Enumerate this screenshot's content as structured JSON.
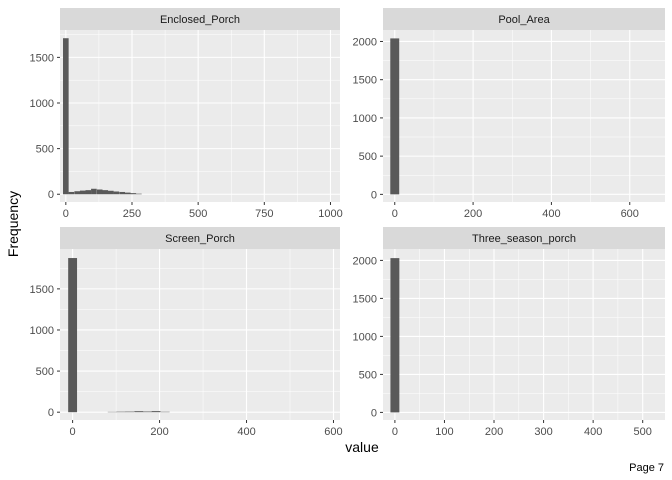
{
  "xlabel": "value",
  "ylabel": "Frequency",
  "page_label": "Page 7",
  "colors": {
    "panel_bg": "#ebebeb",
    "strip_bg": "#d9d9d9",
    "grid_major": "#ffffff",
    "bar_fill": "#595959",
    "tick_color": "#333333"
  },
  "chart_data": [
    {
      "type": "histogram",
      "title": "Enclosed_Porch",
      "xlim": [
        -22,
        1036
      ],
      "ylim": [
        -85,
        1800
      ],
      "x_ticks": [
        0,
        250,
        500,
        750,
        1000
      ],
      "y_ticks": [
        0,
        500,
        1000,
        1500
      ],
      "bin_width": 21.25,
      "bins": [
        {
          "x": 0,
          "count": 1710
        },
        {
          "x": 21,
          "count": 25
        },
        {
          "x": 43,
          "count": 33
        },
        {
          "x": 64,
          "count": 40
        },
        {
          "x": 85,
          "count": 45
        },
        {
          "x": 106,
          "count": 60
        },
        {
          "x": 128,
          "count": 52
        },
        {
          "x": 149,
          "count": 45
        },
        {
          "x": 170,
          "count": 38
        },
        {
          "x": 191,
          "count": 30
        },
        {
          "x": 213,
          "count": 25
        },
        {
          "x": 234,
          "count": 18
        },
        {
          "x": 255,
          "count": 12
        },
        {
          "x": 276,
          "count": 6
        }
      ]
    },
    {
      "type": "histogram",
      "title": "Pool_Area",
      "xlim": [
        -30,
        690
      ],
      "ylim": [
        -100,
        2150
      ],
      "x_ticks": [
        0,
        200,
        400,
        600
      ],
      "y_ticks": [
        0,
        500,
        1000,
        1500,
        2000
      ],
      "bin_width": 22.8,
      "bins": [
        {
          "x": 0,
          "count": 2040
        }
      ]
    },
    {
      "type": "histogram",
      "title": "Screen_Porch",
      "xlim": [
        -29,
        615
      ],
      "ylim": [
        -95,
        1985
      ],
      "x_ticks": [
        0,
        200,
        400,
        600
      ],
      "y_ticks": [
        0,
        500,
        1000,
        1500
      ],
      "bin_width": 20.4,
      "bins": [
        {
          "x": 0,
          "count": 1875
        },
        {
          "x": 91,
          "count": 4
        },
        {
          "x": 111,
          "count": 6
        },
        {
          "x": 131,
          "count": 7
        },
        {
          "x": 152,
          "count": 12
        },
        {
          "x": 172,
          "count": 8
        },
        {
          "x": 192,
          "count": 13
        },
        {
          "x": 213,
          "count": 5
        }
      ]
    },
    {
      "type": "histogram",
      "title": "Three_season_porch",
      "xlim": [
        -24,
        545
      ],
      "ylim": [
        -100,
        2150
      ],
      "x_ticks": [
        0,
        100,
        200,
        300,
        400,
        500
      ],
      "y_ticks": [
        0,
        500,
        1000,
        1500,
        2000
      ],
      "bin_width": 18,
      "bins": [
        {
          "x": 0,
          "count": 2030
        }
      ]
    }
  ]
}
